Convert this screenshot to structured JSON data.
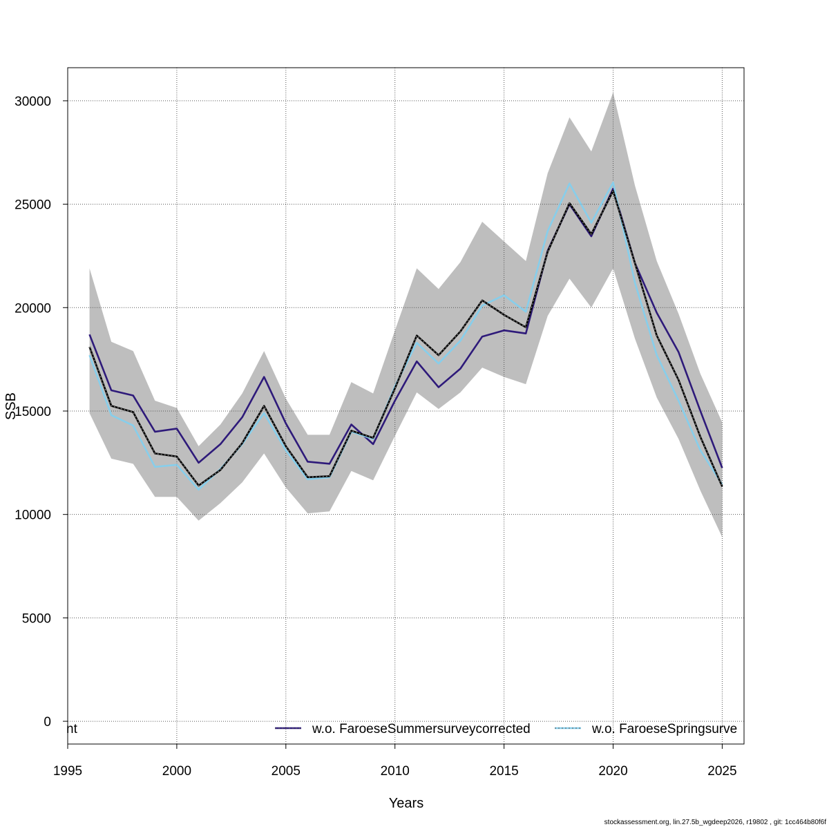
{
  "chart_data": {
    "type": "line",
    "title": "",
    "xlabel": "Years",
    "ylabel": "SSB",
    "xlim": [
      1995,
      2026
    ],
    "ylim": [
      -1100,
      31600
    ],
    "x_ticks": [
      1995,
      2000,
      2005,
      2010,
      2015,
      2020,
      2025
    ],
    "y_ticks": [
      0,
      5000,
      10000,
      15000,
      20000,
      25000,
      30000
    ],
    "grid": true,
    "legend_placement": "bottom",
    "x": [
      1996,
      1997,
      1998,
      1999,
      2000,
      2001,
      2002,
      2003,
      2004,
      2005,
      2006,
      2007,
      2008,
      2009,
      2010,
      2011,
      2012,
      2013,
      2014,
      2015,
      2016,
      2017,
      2018,
      2019,
      2020,
      2021,
      2022,
      2023,
      2024,
      2025
    ],
    "band": {
      "color": "#bebebe",
      "upper": [
        21900,
        18350,
        17900,
        15500,
        15150,
        13300,
        14350,
        15850,
        17900,
        15600,
        13850,
        13850,
        16400,
        15850,
        18900,
        21900,
        20900,
        22200,
        24150,
        23200,
        22250,
        26500,
        29200,
        27550,
        30400,
        25900,
        22250,
        19700,
        16800,
        14450
      ],
      "lower": [
        14900,
        12700,
        12450,
        10850,
        10850,
        9700,
        10550,
        11550,
        12950,
        11300,
        10050,
        10150,
        12100,
        11650,
        13800,
        15900,
        15100,
        15900,
        17100,
        16650,
        16300,
        19600,
        21400,
        20000,
        21900,
        18500,
        15650,
        13650,
        11150,
        8900
      ]
    },
    "series": [
      {
        "color": "#000000",
        "values": [
          18100,
          15250,
          14950,
          12950,
          12800,
          11400,
          12150,
          13450,
          15250,
          13300,
          11800,
          11850,
          14050,
          13700,
          16100,
          18650,
          17700,
          18850,
          20350,
          19650,
          19050,
          22700,
          25050,
          23550,
          25650,
          22150,
          18650,
          16500,
          13750,
          11350
        ]
      },
      {
        "name": "w.o. FaroeseSummersurveycorrected",
        "color": "#2e1a7a",
        "values": [
          18700,
          16000,
          15750,
          14000,
          14150,
          12500,
          13400,
          14700,
          16650,
          14400,
          12550,
          12450,
          14350,
          13400,
          15500,
          17400,
          16150,
          17050,
          18600,
          18900,
          18750,
          22750,
          25000,
          23450,
          25750,
          22150,
          19750,
          17850,
          15000,
          12250
        ]
      },
      {
        "name": "w.o. FaroeseSpringsurve",
        "color": "#87ceeb",
        "values": [
          17700,
          14800,
          14300,
          12300,
          12400,
          11200,
          12200,
          13400,
          14900,
          13100,
          11700,
          11800,
          14000,
          13650,
          16200,
          18300,
          17300,
          18400,
          20100,
          20600,
          19800,
          23700,
          26000,
          24100,
          26050,
          21200,
          17700,
          15500,
          13100,
          11450
        ]
      }
    ],
    "legend_left_fragment": "nt"
  },
  "footer": "stockassessment.org, lin.27.5b_wgdeep2026, r19802 , git: 1cc464b80f6f"
}
